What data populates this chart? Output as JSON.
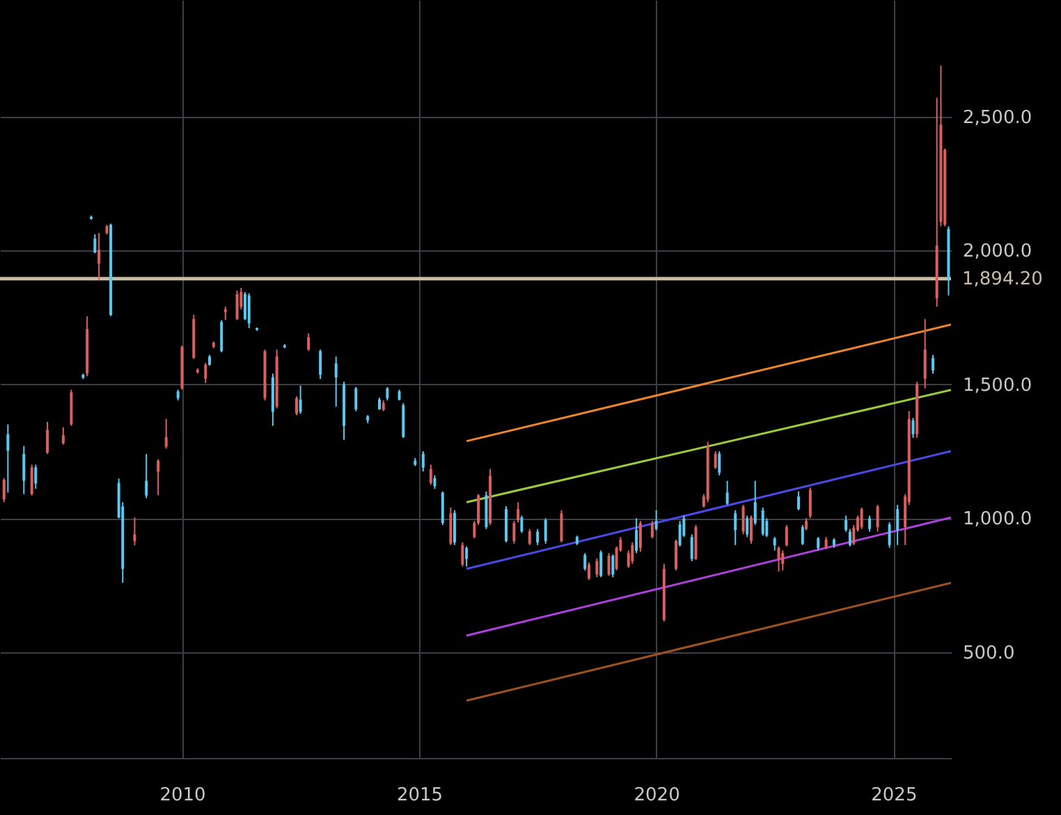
{
  "chart_data": {
    "type": "candlestick",
    "xlim": [
      "2006-03-01",
      "2026-03-20"
    ],
    "ylim": [
      105,
      2935
    ],
    "xticks": [
      "2010",
      "2015",
      "2020",
      "2025"
    ],
    "yticks": [
      {
        "value": 500,
        "label": "500.0"
      },
      {
        "value": 1000,
        "label": "1,000.0"
      },
      {
        "value": 1500,
        "label": "1,500.0"
      },
      {
        "value": 2000,
        "label": "2,000.0"
      },
      {
        "value": 2500,
        "label": "2,500.0"
      }
    ],
    "grid": true,
    "ref_lines": [
      {
        "axis": "y",
        "value": 1894.2,
        "label": "1,894.20",
        "color": "#c9bda6"
      }
    ],
    "series": [
      {
        "color": "#d9605e",
        "x": [
          "2006-04",
          "2006-11",
          "2007-03",
          "2007-07",
          "2007-09",
          "2008-01",
          "2008-04",
          "2008-06",
          "2009-01",
          "2009-07",
          "2009-09",
          "2010-01",
          "2010-04",
          "2010-05",
          "2010-07",
          "2010-09",
          "2010-12",
          "2011-03",
          "2011-04",
          "2011-10",
          "2012-01",
          "2012-06",
          "2012-09",
          "2014-04",
          "2015-04",
          "2015-09",
          "2015-12",
          "2016-03",
          "2016-04",
          "2016-07",
          "2017-01",
          "2017-02",
          "2017-05",
          "2018-01",
          "2018-08",
          "2018-10",
          "2019-01",
          "2019-03",
          "2019-04",
          "2019-06",
          "2019-07",
          "2019-09",
          "2019-12",
          "2020-03",
          "2020-06",
          "2020-11",
          "2021-01",
          "2021-02",
          "2021-04",
          "2021-11",
          "2022-01",
          "2022-08",
          "2022-09",
          "2022-10",
          "2023-03",
          "2023-04",
          "2023-08",
          "2024-03",
          "2024-04",
          "2024-05",
          "2024-09",
          "2025-04",
          "2025-05",
          "2025-07",
          "2025-09",
          "2025-12",
          "2026-01",
          "2026-02"
        ],
        "ohlc": [
          [
            1070,
            1150,
            1060,
            1143
          ],
          [
            1090,
            1200,
            1085,
            1190
          ],
          [
            1245,
            1360,
            1240,
            1330
          ],
          [
            1280,
            1340,
            1275,
            1310
          ],
          [
            1350,
            1480,
            1345,
            1470
          ],
          [
            1540,
            1754,
            1530,
            1707
          ],
          [
            1951,
            2065,
            1889,
            2003
          ],
          [
            2065,
            2095,
            2060,
            2091
          ],
          [
            915,
            1003,
            899,
            940
          ],
          [
            1174,
            1220,
            1086,
            1215
          ],
          [
            1267,
            1371,
            1260,
            1303
          ],
          [
            1485,
            1645,
            1480,
            1640
          ],
          [
            1599,
            1760,
            1595,
            1744
          ],
          [
            1545,
            1560,
            1540,
            1555
          ],
          [
            1521,
            1580,
            1505,
            1573
          ],
          [
            1640,
            1660,
            1635,
            1655
          ],
          [
            1770,
            1790,
            1740,
            1780
          ],
          [
            1744,
            1850,
            1740,
            1837
          ],
          [
            1790,
            1860,
            1780,
            1845
          ],
          [
            1448,
            1630,
            1440,
            1624
          ],
          [
            1417,
            1630,
            1410,
            1604
          ],
          [
            1391,
            1455,
            1385,
            1448
          ],
          [
            1630,
            1690,
            1625,
            1676
          ],
          [
            1405,
            1440,
            1400,
            1430
          ],
          [
            1132,
            1200,
            1125,
            1184
          ],
          [
            905,
            1040,
            900,
            1018
          ],
          [
            827,
            910,
            820,
            900
          ],
          [
            930,
            990,
            925,
            982
          ],
          [
            982,
            1090,
            975,
            1086
          ],
          [
            982,
            1184,
            975,
            1158
          ],
          [
            915,
            990,
            905,
            982
          ],
          [
            993,
            1060,
            985,
            1034
          ],
          [
            905,
            960,
            900,
            951
          ],
          [
            915,
            1030,
            910,
            1018
          ],
          [
            775,
            835,
            770,
            827
          ],
          [
            790,
            850,
            780,
            840
          ],
          [
            790,
            870,
            785,
            860
          ],
          [
            811,
            895,
            805,
            889
          ],
          [
            880,
            930,
            875,
            920
          ],
          [
            820,
            880,
            815,
            870
          ],
          [
            840,
            910,
            830,
            900
          ],
          [
            890,
            990,
            875,
            982
          ],
          [
            930,
            990,
            925,
            982
          ],
          [
            620,
            830,
            615,
            811
          ],
          [
            811,
            920,
            805,
            915
          ],
          [
            848,
            975,
            845,
            967
          ],
          [
            1044,
            1090,
            1040,
            1081
          ],
          [
            1070,
            1285,
            1060,
            1270
          ],
          [
            1189,
            1250,
            1185,
            1241
          ],
          [
            951,
            1050,
            940,
            1044
          ],
          [
            915,
            1010,
            905,
            1003
          ],
          [
            848,
            895,
            801,
            889
          ],
          [
            830,
            880,
            805,
            870
          ],
          [
            900,
            975,
            895,
            967
          ],
          [
            960,
            1000,
            955,
            990
          ],
          [
            1008,
            1115,
            1000,
            1106
          ],
          [
            889,
            930,
            885,
            920
          ],
          [
            905,
            975,
            900,
            965
          ],
          [
            956,
            1010,
            950,
            1003
          ],
          [
            967,
            1040,
            960,
            1034
          ],
          [
            967,
            1050,
            950,
            1044
          ],
          [
            967,
            1090,
            900,
            1081
          ],
          [
            1060,
            1400,
            1050,
            1371
          ],
          [
            1314,
            1510,
            1300,
            1500
          ],
          [
            1521,
            1744,
            1485,
            1630
          ],
          [
            1821,
            2570,
            1790,
            2018
          ],
          [
            2106,
            2690,
            2090,
            2469
          ],
          [
            2096,
            2380,
            2090,
            2376
          ]
        ]
      },
      {
        "color": "#5bc8f0",
        "x": [
          "2006-05",
          "2006-09",
          "2006-12",
          "2007-12",
          "2008-02",
          "2008-03",
          "2008-07",
          "2008-09",
          "2008-10",
          "2009-04",
          "2009-12",
          "2010-08",
          "2010-11",
          "2011-05",
          "2011-06",
          "2011-08",
          "2011-12",
          "2012-03",
          "2012-07",
          "2012-12",
          "2013-04",
          "2013-06",
          "2013-09",
          "2013-12",
          "2014-03",
          "2014-05",
          "2014-08",
          "2014-09",
          "2014-12",
          "2015-02",
          "2015-05",
          "2015-07",
          "2015-10",
          "2016-01",
          "2016-06",
          "2016-11",
          "2017-03",
          "2017-07",
          "2017-09",
          "2018-05",
          "2018-07",
          "2018-11",
          "2019-02",
          "2019-08",
          "2020-01",
          "2020-07",
          "2020-08",
          "2020-10",
          "2021-05",
          "2021-07",
          "2021-09",
          "2021-12",
          "2022-02",
          "2022-04",
          "2022-05",
          "2022-07",
          "2023-01",
          "2023-02",
          "2023-06",
          "2023-10",
          "2024-01",
          "2024-02",
          "2024-07",
          "2024-12",
          "2025-02",
          "2025-06",
          "2025-11",
          "2026-03"
        ],
        "ohlc": [
          [
            1314,
            1350,
            1096,
            1252
          ],
          [
            1240,
            1270,
            1090,
            1140
          ],
          [
            1190,
            1200,
            1110,
            1130
          ],
          [
            1536,
            1540,
            1520,
            1525
          ],
          [
            2125,
            2130,
            2115,
            2118
          ],
          [
            2044,
            2060,
            1990,
            1992
          ],
          [
            2096,
            2100,
            1755,
            1759
          ],
          [
            1132,
            1148,
            1000,
            1003
          ],
          [
            1044,
            1060,
            759,
            811
          ],
          [
            1140,
            1240,
            1075,
            1085
          ],
          [
            1474,
            1480,
            1440,
            1448
          ],
          [
            1604,
            1610,
            1570,
            1573
          ],
          [
            1733,
            1740,
            1620,
            1624
          ],
          [
            1837,
            1845,
            1740,
            1744
          ],
          [
            1832,
            1840,
            1710,
            1728
          ],
          [
            1710,
            1712,
            1700,
            1704
          ],
          [
            1526,
            1540,
            1345,
            1397
          ],
          [
            1645,
            1650,
            1635,
            1638
          ],
          [
            1443,
            1495,
            1390,
            1397
          ],
          [
            1624,
            1630,
            1520,
            1536
          ],
          [
            1578,
            1604,
            1417,
            1526
          ],
          [
            1500,
            1510,
            1293,
            1345
          ],
          [
            1485,
            1490,
            1400,
            1407
          ],
          [
            1381,
            1385,
            1355,
            1365
          ],
          [
            1443,
            1450,
            1405,
            1407
          ],
          [
            1485,
            1490,
            1440,
            1448
          ],
          [
            1474,
            1480,
            1440,
            1443
          ],
          [
            1422,
            1430,
            1300,
            1303
          ],
          [
            1215,
            1225,
            1195,
            1200
          ],
          [
            1241,
            1250,
            1175,
            1189
          ],
          [
            1150,
            1160,
            1110,
            1120
          ],
          [
            1096,
            1100,
            975,
            982
          ],
          [
            1020,
            1030,
            900,
            910
          ],
          [
            889,
            895,
            820,
            848
          ],
          [
            1086,
            1100,
            960,
            967
          ],
          [
            1034,
            1045,
            910,
            915
          ],
          [
            1003,
            1010,
            945,
            951
          ],
          [
            950,
            960,
            900,
            910
          ],
          [
            993,
            1000,
            905,
            915
          ],
          [
            930,
            935,
            900,
            905
          ],
          [
            863,
            870,
            805,
            811
          ],
          [
            873,
            880,
            780,
            785
          ],
          [
            860,
            865,
            780,
            790
          ],
          [
            956,
            1000,
            870,
            879
          ],
          [
            990,
            1030,
            955,
            960
          ],
          [
            977,
            990,
            895,
            900
          ],
          [
            1000,
            1010,
            930,
            935
          ],
          [
            930,
            940,
            840,
            848
          ],
          [
            1241,
            1250,
            1160,
            1170
          ],
          [
            1096,
            1140,
            1050,
            1055
          ],
          [
            1018,
            1030,
            900,
            956
          ],
          [
            1000,
            1010,
            930,
            940
          ],
          [
            1060,
            1140,
            975,
            982
          ],
          [
            1029,
            1040,
            935,
            941
          ],
          [
            990,
            1000,
            930,
            935
          ],
          [
            925,
            930,
            880,
            899
          ],
          [
            1081,
            1100,
            1030,
            1034
          ],
          [
            967,
            975,
            900,
            905
          ],
          [
            925,
            930,
            880,
            889
          ],
          [
            920,
            925,
            890,
            900
          ],
          [
            993,
            1010,
            950,
            956
          ],
          [
            950,
            960,
            895,
            900
          ],
          [
            1000,
            1010,
            950,
            960
          ],
          [
            977,
            985,
            890,
            900
          ],
          [
            1034,
            1050,
            900,
            956
          ],
          [
            1365,
            1375,
            1300,
            1314
          ],
          [
            1599,
            1610,
            1540,
            1552
          ],
          [
            2080,
            2090,
            1832,
            1894.2
          ]
        ]
      },
      {
        "type": "line",
        "color": "#f0862a",
        "x": [
          "2016-01-01",
          "2026-03-20"
        ],
        "values": [
          1288,
          1723
        ]
      },
      {
        "type": "line",
        "color": "#9ccc3c",
        "x": [
          "2016-01-01",
          "2026-03-20"
        ],
        "values": [
          1060,
          1479
        ]
      },
      {
        "type": "line",
        "color": "#4a4ae8",
        "x": [
          "2016-01-01",
          "2026-03-20"
        ],
        "values": [
          811,
          1251
        ]
      },
      {
        "type": "line",
        "color": "#b040e0",
        "x": [
          "2016-01-01",
          "2026-03-20"
        ],
        "values": [
          562,
          1003
        ]
      },
      {
        "type": "line",
        "color": "#a0521c",
        "x": [
          "2016-01-01",
          "2026-03-20"
        ],
        "values": [
          319,
          759
        ]
      }
    ]
  }
}
